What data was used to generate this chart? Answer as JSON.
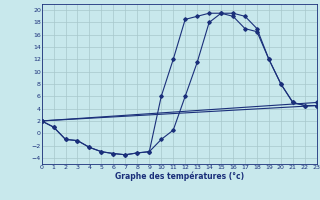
{
  "xlabel": "Graphe des températures (°c)",
  "bg_color": "#c8e8ec",
  "grid_color": "#a8c8cc",
  "line_color": "#1a2f7a",
  "xlim": [
    0,
    23
  ],
  "ylim": [
    -5,
    21
  ],
  "yticks": [
    -4,
    -2,
    0,
    2,
    4,
    6,
    8,
    10,
    12,
    14,
    16,
    18,
    20
  ],
  "xticks": [
    0,
    1,
    2,
    3,
    4,
    5,
    6,
    7,
    8,
    9,
    10,
    11,
    12,
    13,
    14,
    15,
    16,
    17,
    18,
    19,
    20,
    21,
    22,
    23
  ],
  "curve1_x": [
    0,
    1,
    2,
    3,
    4,
    5,
    6,
    7,
    8,
    9,
    10,
    11,
    12,
    13,
    14,
    15,
    16,
    17,
    18,
    19,
    20,
    21,
    22,
    23
  ],
  "curve1_y": [
    2,
    1,
    -1,
    -1.2,
    -2.3,
    -3,
    -3.3,
    -3.5,
    -3.2,
    -3,
    6,
    12,
    18.5,
    19,
    19.5,
    19.5,
    19,
    17,
    16.5,
    12,
    8,
    5,
    4.5,
    4.5
  ],
  "curve2_x": [
    0,
    1,
    2,
    3,
    4,
    5,
    6,
    7,
    8,
    9,
    10,
    11,
    12,
    13,
    14,
    15,
    16,
    17,
    18,
    19,
    20,
    21,
    22,
    23
  ],
  "curve2_y": [
    2,
    1,
    -1,
    -1.2,
    -2.3,
    -3,
    -3.3,
    -3.5,
    -3.2,
    -3,
    -1,
    0.5,
    6,
    11.5,
    18,
    19.5,
    19.5,
    19,
    17,
    12,
    8,
    5,
    4.5,
    4.5
  ],
  "line3_x": [
    0,
    23
  ],
  "line3_y": [
    2,
    5.0
  ],
  "line4_x": [
    0,
    23
  ],
  "line4_y": [
    2,
    4.5
  ]
}
